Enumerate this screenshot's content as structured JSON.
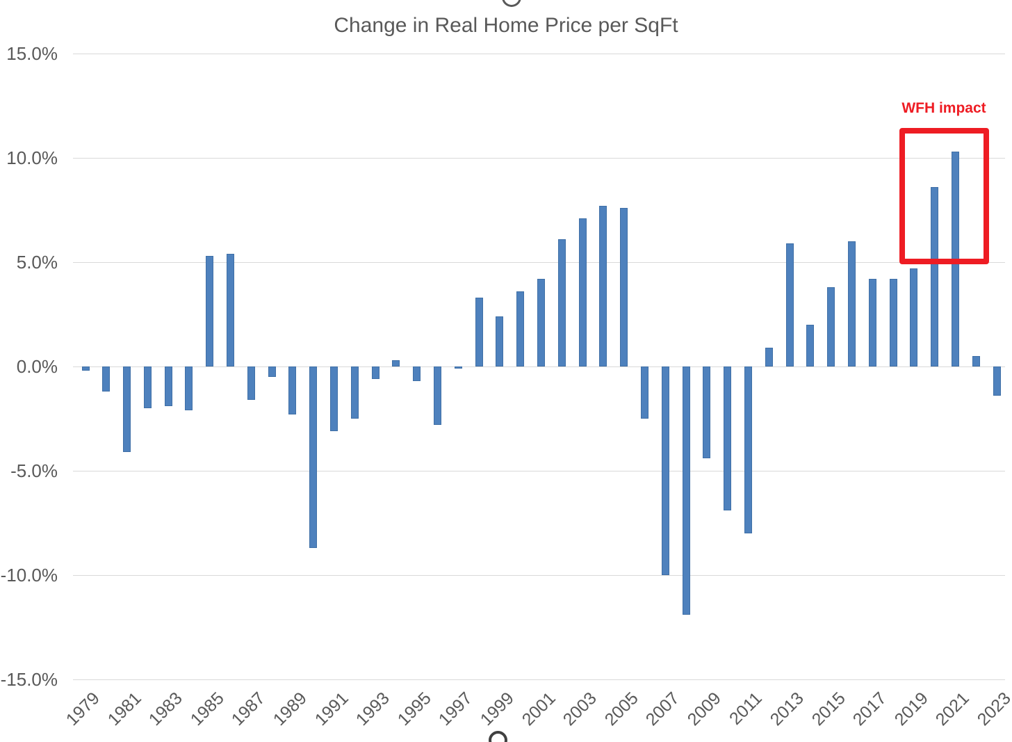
{
  "chart_data": {
    "type": "bar",
    "title": "Change in Real Home Price per SqFt",
    "categories": [
      1979,
      1980,
      1981,
      1982,
      1983,
      1984,
      1985,
      1986,
      1987,
      1988,
      1989,
      1990,
      1991,
      1992,
      1993,
      1994,
      1995,
      1996,
      1997,
      1998,
      1999,
      2000,
      2001,
      2002,
      2003,
      2004,
      2005,
      2006,
      2007,
      2008,
      2009,
      2010,
      2011,
      2012,
      2013,
      2014,
      2015,
      2016,
      2017,
      2018,
      2019,
      2020,
      2021,
      2022,
      2023
    ],
    "values": [
      -0.2,
      -1.2,
      -4.1,
      -2.0,
      -1.9,
      -2.1,
      5.3,
      5.4,
      -1.6,
      -0.5,
      -2.3,
      -8.7,
      -3.1,
      -2.5,
      -0.6,
      0.3,
      -0.7,
      -2.8,
      -0.1,
      3.3,
      2.4,
      3.6,
      4.2,
      6.1,
      7.1,
      7.7,
      7.6,
      -2.5,
      -10.0,
      -11.9,
      -4.4,
      -6.9,
      -8.0,
      0.9,
      5.9,
      2.0,
      3.8,
      6.0,
      4.2,
      4.2,
      4.7,
      8.6,
      10.3,
      0.5,
      -1.4
    ],
    "xlabel": "",
    "ylabel": "",
    "ylim": [
      -15,
      15
    ],
    "y_tick_values": [
      15,
      10,
      5,
      0,
      -5,
      -10,
      -15
    ],
    "y_tick_labels": [
      "15.0%",
      "10.0%",
      "5.0%",
      "0.0%",
      "-5.0%",
      "-10.0%",
      "-15.0%"
    ],
    "x_tick_labels": [
      "1979",
      "1981",
      "1983",
      "1985",
      "1987",
      "1989",
      "1991",
      "1993",
      "1995",
      "1997",
      "1999",
      "2001",
      "2003",
      "2005",
      "2007",
      "2009",
      "2011",
      "2013",
      "2015",
      "2017",
      "2019",
      "2021",
      "2023"
    ],
    "grid": true,
    "legend": "none",
    "bar_color": "#4e81bd",
    "annotation": {
      "label": "WFH impact",
      "color": "#ee1c23",
      "highlight_years": [
        2020,
        2021
      ]
    }
  }
}
